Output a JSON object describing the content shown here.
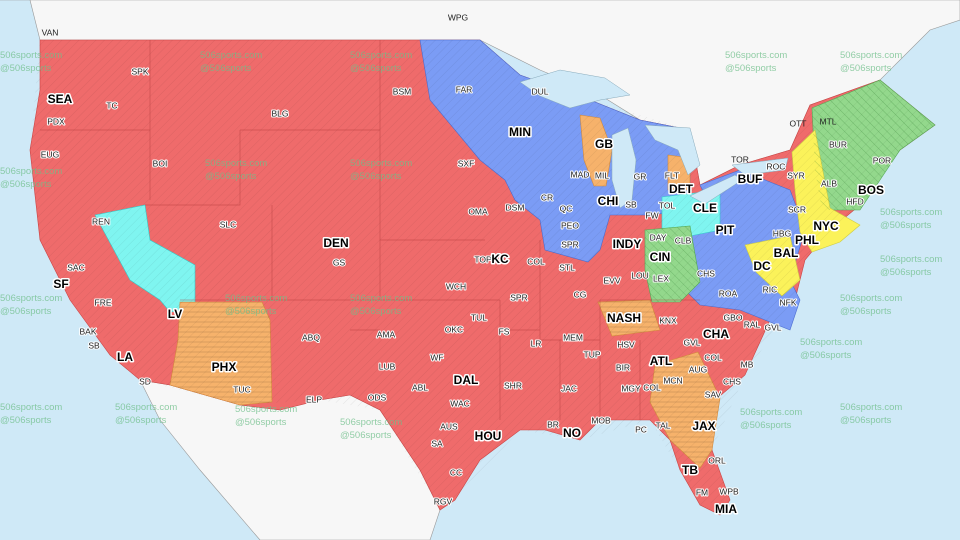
{
  "watermark": {
    "line1": "506sports.com",
    "line2": "@506sports"
  },
  "colors": {
    "ocean": "#cfe9f7",
    "foreign_land": "#f7f7f7",
    "red": "#ef6b6b",
    "blue": "#7b9cf5",
    "cyan": "#7ff5f0",
    "orange": "#f6b26b",
    "green": "#93d88c",
    "yellow": "#fbf25a"
  },
  "regions": [
    {
      "name": "red",
      "color": "#ef6b6b"
    },
    {
      "name": "blue",
      "color": "#7b9cf5"
    },
    {
      "name": "cyan",
      "color": "#7ff5f0"
    },
    {
      "name": "orange",
      "color": "#f6b26b"
    },
    {
      "name": "green",
      "color": "#93d88c"
    },
    {
      "name": "yellow",
      "color": "#fbf25a"
    }
  ],
  "markets": [
    {
      "code": "VAN",
      "type": "canada"
    },
    {
      "code": "WPG",
      "type": "canada"
    },
    {
      "code": "OTT",
      "type": "canada"
    },
    {
      "code": "MTL",
      "type": "canada"
    },
    {
      "code": "TOR",
      "type": "canada"
    },
    {
      "code": "SEA",
      "type": "major"
    },
    {
      "code": "SPK"
    },
    {
      "code": "PDX"
    },
    {
      "code": "TC"
    },
    {
      "code": "EUG"
    },
    {
      "code": "BOI"
    },
    {
      "code": "BLG"
    },
    {
      "code": "BSM"
    },
    {
      "code": "FAR"
    },
    {
      "code": "DUL"
    },
    {
      "code": "MIN",
      "type": "major"
    },
    {
      "code": "GB",
      "type": "major"
    },
    {
      "code": "MAD"
    },
    {
      "code": "MIL"
    },
    {
      "code": "GR"
    },
    {
      "code": "FLT"
    },
    {
      "code": "DET",
      "type": "major"
    },
    {
      "code": "CHI",
      "type": "major"
    },
    {
      "code": "SB"
    },
    {
      "code": "TOL"
    },
    {
      "code": "CLE",
      "type": "major"
    },
    {
      "code": "BUF",
      "type": "major"
    },
    {
      "code": "ROC"
    },
    {
      "code": "SYR"
    },
    {
      "code": "BUR"
    },
    {
      "code": "POR"
    },
    {
      "code": "ALB"
    },
    {
      "code": "BOS",
      "type": "major"
    },
    {
      "code": "HFD"
    },
    {
      "code": "SCR"
    },
    {
      "code": "NYC",
      "type": "major"
    },
    {
      "code": "HBG"
    },
    {
      "code": "PHL",
      "type": "major"
    },
    {
      "code": "PIT",
      "type": "major"
    },
    {
      "code": "BAL",
      "type": "major"
    },
    {
      "code": "DC",
      "type": "major"
    },
    {
      "code": "RIC"
    },
    {
      "code": "ROA"
    },
    {
      "code": "NFK"
    },
    {
      "code": "CHS"
    },
    {
      "code": "DAY"
    },
    {
      "code": "CLB"
    },
    {
      "code": "INDY",
      "type": "major"
    },
    {
      "code": "CIN",
      "type": "major"
    },
    {
      "code": "LOU"
    },
    {
      "code": "LEX"
    },
    {
      "code": "FW"
    },
    {
      "code": "EVV"
    },
    {
      "code": "SXF"
    },
    {
      "code": "OMA"
    },
    {
      "code": "DSM"
    },
    {
      "code": "CR"
    },
    {
      "code": "QC"
    },
    {
      "code": "PEO"
    },
    {
      "code": "SPR"
    },
    {
      "code": "TOP"
    },
    {
      "code": "KC",
      "type": "major"
    },
    {
      "code": "COL"
    },
    {
      "code": "STL"
    },
    {
      "code": "SPR"
    },
    {
      "code": "CG"
    },
    {
      "code": "WCH"
    },
    {
      "code": "TUL"
    },
    {
      "code": "OKC"
    },
    {
      "code": "FS"
    },
    {
      "code": "DEN",
      "type": "major"
    },
    {
      "code": "GS"
    },
    {
      "code": "SLC"
    },
    {
      "code": "REN"
    },
    {
      "code": "SAC"
    },
    {
      "code": "SF",
      "type": "major"
    },
    {
      "code": "FRE"
    },
    {
      "code": "LV",
      "type": "major"
    },
    {
      "code": "BAK"
    },
    {
      "code": "SB"
    },
    {
      "code": "LA",
      "type": "major"
    },
    {
      "code": "SD"
    },
    {
      "code": "PHX",
      "type": "major"
    },
    {
      "code": "TUC"
    },
    {
      "code": "ABQ"
    },
    {
      "code": "AMA"
    },
    {
      "code": "LUB"
    },
    {
      "code": "ELP"
    },
    {
      "code": "ODS"
    },
    {
      "code": "ABL"
    },
    {
      "code": "WF"
    },
    {
      "code": "DAL",
      "type": "major"
    },
    {
      "code": "WAC"
    },
    {
      "code": "AUS"
    },
    {
      "code": "SA"
    },
    {
      "code": "HOU",
      "type": "major"
    },
    {
      "code": "CC"
    },
    {
      "code": "RGV"
    },
    {
      "code": "SHR"
    },
    {
      "code": "LR"
    },
    {
      "code": "MEM"
    },
    {
      "code": "TUP"
    },
    {
      "code": "JAC"
    },
    {
      "code": "BR"
    },
    {
      "code": "NO",
      "type": "major"
    },
    {
      "code": "MOB"
    },
    {
      "code": "NASH",
      "type": "major"
    },
    {
      "code": "KNX"
    },
    {
      "code": "HSV"
    },
    {
      "code": "BIR"
    },
    {
      "code": "MGY"
    },
    {
      "code": "ATL",
      "type": "major"
    },
    {
      "code": "COL"
    },
    {
      "code": "MCN"
    },
    {
      "code": "PC"
    },
    {
      "code": "TAL"
    },
    {
      "code": "CHA",
      "type": "major"
    },
    {
      "code": "GBO"
    },
    {
      "code": "RAL"
    },
    {
      "code": "GVL"
    },
    {
      "code": "GVL"
    },
    {
      "code": "COL"
    },
    {
      "code": "AUG"
    },
    {
      "code": "MB"
    },
    {
      "code": "CHS"
    },
    {
      "code": "SAV"
    },
    {
      "code": "JAX",
      "type": "major"
    },
    {
      "code": "ORL"
    },
    {
      "code": "TB",
      "type": "major"
    },
    {
      "code": "FM"
    },
    {
      "code": "WPB"
    },
    {
      "code": "MIA",
      "type": "major"
    }
  ]
}
